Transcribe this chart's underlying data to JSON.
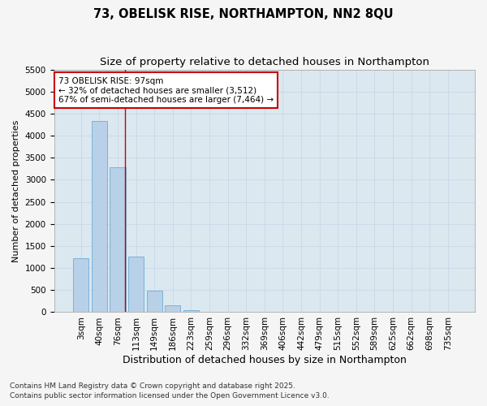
{
  "title1": "73, OBELISK RISE, NORTHAMPTON, NN2 8QU",
  "title2": "Size of property relative to detached houses in Northampton",
  "xlabel": "Distribution of detached houses by size in Northampton",
  "ylabel": "Number of detached properties",
  "categories": [
    "3sqm",
    "40sqm",
    "76sqm",
    "113sqm",
    "149sqm",
    "186sqm",
    "223sqm",
    "259sqm",
    "296sqm",
    "332sqm",
    "369sqm",
    "406sqm",
    "442sqm",
    "479sqm",
    "515sqm",
    "552sqm",
    "589sqm",
    "625sqm",
    "662sqm",
    "698sqm",
    "735sqm"
  ],
  "values": [
    1220,
    4330,
    3280,
    1260,
    480,
    150,
    50,
    5,
    2,
    0,
    0,
    0,
    0,
    0,
    0,
    0,
    0,
    0,
    0,
    0,
    0
  ],
  "bar_color": "#b8d0e8",
  "bar_edge_color": "#6aaed6",
  "grid_color": "#c8d8e8",
  "bg_color": "#dce8f0",
  "fig_bg_color": "#f5f5f5",
  "vline_color": "#cc0000",
  "vline_x": 2.42,
  "annotation_text": "73 OBELISK RISE: 97sqm\n← 32% of detached houses are smaller (3,512)\n67% of semi-detached houses are larger (7,464) →",
  "annotation_box_color": "#ffffff",
  "annotation_box_edge": "#cc0000",
  "ylim": [
    0,
    5500
  ],
  "yticks": [
    0,
    500,
    1000,
    1500,
    2000,
    2500,
    3000,
    3500,
    4000,
    4500,
    5000,
    5500
  ],
  "footnote1": "Contains HM Land Registry data © Crown copyright and database right 2025.",
  "footnote2": "Contains public sector information licensed under the Open Government Licence v3.0.",
  "title1_fontsize": 10.5,
  "title2_fontsize": 9.5,
  "xlabel_fontsize": 9,
  "ylabel_fontsize": 8,
  "tick_fontsize": 7.5,
  "annotation_fontsize": 7.5,
  "footnote_fontsize": 6.5
}
